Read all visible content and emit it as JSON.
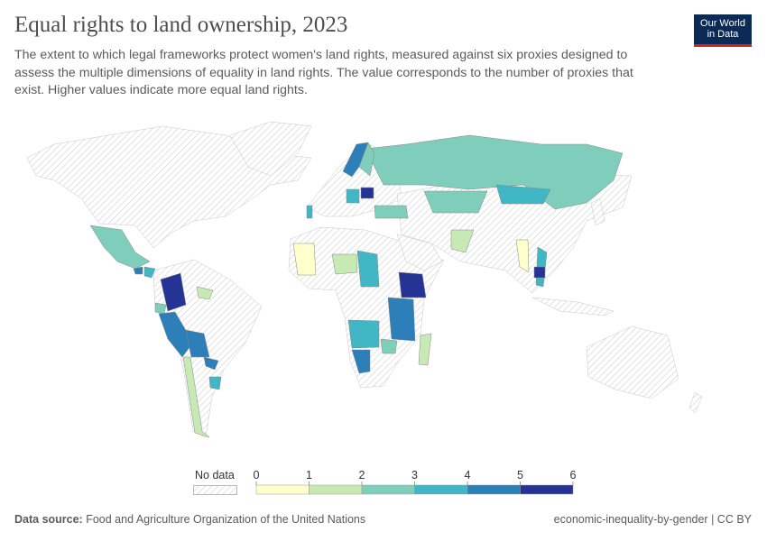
{
  "header": {
    "title": "Equal rights to land ownership, 2023",
    "subtitle": "The extent to which legal frameworks protect women's land rights, measured against six proxies designed to assess the multiple dimensions of equality in land rights. The value corresponds to the number of proxies that exist. Higher values indicate more equal land rights.",
    "logo_line1": "Our World",
    "logo_line2": "in Data"
  },
  "legend": {
    "no_data_label": "No data",
    "ticks": [
      "0",
      "1",
      "2",
      "3",
      "4",
      "5",
      "6"
    ],
    "bins": [
      {
        "from": 0,
        "to": 1,
        "color": "#ffffcc"
      },
      {
        "from": 1,
        "to": 2,
        "color": "#c7e9b4"
      },
      {
        "from": 2,
        "to": 3,
        "color": "#7fcdbb"
      },
      {
        "from": 3,
        "to": 4,
        "color": "#41b6c4"
      },
      {
        "from": 4,
        "to": 5,
        "color": "#2c7fb8"
      },
      {
        "from": 5,
        "to": 6,
        "color": "#253494"
      }
    ]
  },
  "regions": [
    {
      "id": "mexico",
      "value": 2.5
    },
    {
      "id": "guatemala",
      "value": 4.5
    },
    {
      "id": "honduras",
      "value": 3.5
    },
    {
      "id": "colombia",
      "value": 5.5
    },
    {
      "id": "venezuela",
      "value": 1.5
    },
    {
      "id": "ecuador",
      "value": 2.5
    },
    {
      "id": "peru",
      "value": 4.5
    },
    {
      "id": "bolivia",
      "value": 4.5
    },
    {
      "id": "chile",
      "value": 1.5
    },
    {
      "id": "paraguay",
      "value": 4.5
    },
    {
      "id": "uruguay",
      "value": 3.5
    },
    {
      "id": "mali",
      "value": 0.5
    },
    {
      "id": "niger",
      "value": 1.5
    },
    {
      "id": "chad",
      "value": 3.5
    },
    {
      "id": "ethiopia",
      "value": 5.5
    },
    {
      "id": "tanzania",
      "value": 4.5
    },
    {
      "id": "angola",
      "value": 3.5
    },
    {
      "id": "namibia",
      "value": 4.5
    },
    {
      "id": "zimbabwe",
      "value": 2.5
    },
    {
      "id": "madagascar",
      "value": 1.5
    },
    {
      "id": "russia",
      "value": 2.5
    },
    {
      "id": "norway",
      "value": 4.5
    },
    {
      "id": "sweden",
      "value": 2.5
    },
    {
      "id": "poland",
      "value": 5.5
    },
    {
      "id": "germany",
      "value": 3.5
    },
    {
      "id": "portugal",
      "value": 3.5
    },
    {
      "id": "kazakhstan",
      "value": 2.5
    },
    {
      "id": "mongolia",
      "value": 3.5
    },
    {
      "id": "turkey",
      "value": 2.5
    },
    {
      "id": "pakistan",
      "value": 1.5
    },
    {
      "id": "myanmar",
      "value": 0.5
    },
    {
      "id": "vietnam",
      "value": 3.5
    },
    {
      "id": "cambodia",
      "value": 5.5
    }
  ],
  "footer": {
    "source_label": "Data source:",
    "source": "Food and Agriculture Organization of the United Nations",
    "right": "economic-inequality-by-gender | CC BY"
  }
}
